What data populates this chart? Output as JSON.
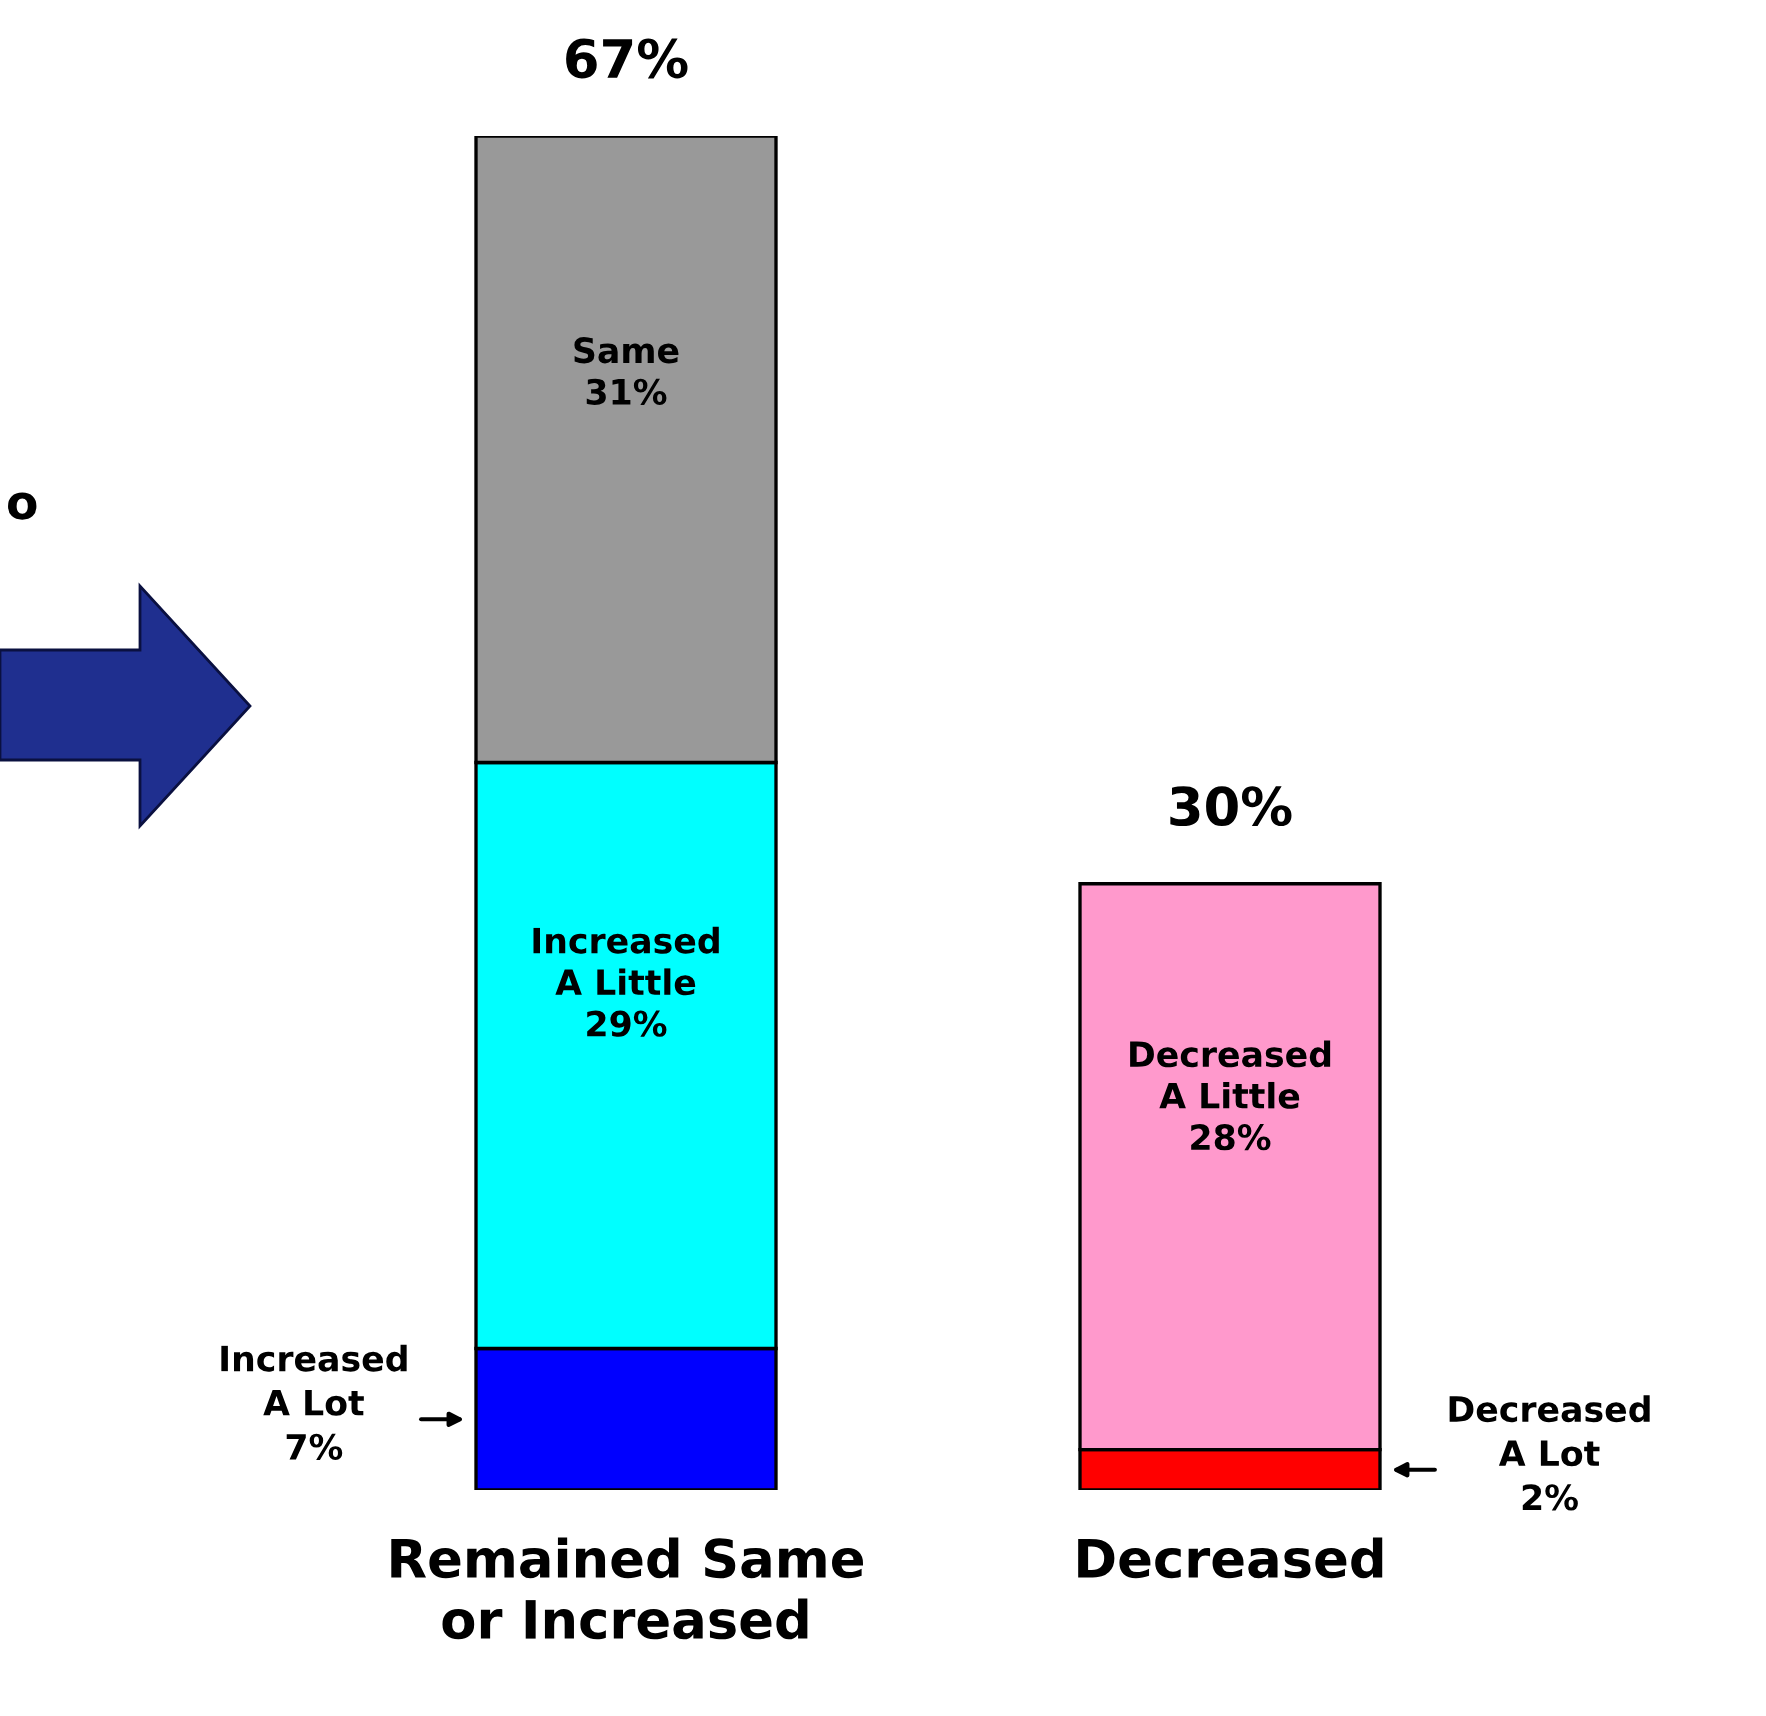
{
  "chart_data": {
    "type": "bar",
    "stacked": true,
    "categories": [
      "Remained Same\nor Increased",
      "Decreased"
    ],
    "series": [
      {
        "colors": [
          "#0000ff",
          "#ff0000"
        ],
        "values": [
          7,
          2
        ],
        "value_labels": [
          "Increased\nA Lot\n7%",
          "Decreased\nA Lot\n2%"
        ]
      },
      {
        "colors": [
          "#00ffff",
          "#ff99cc"
        ],
        "values": [
          29,
          28
        ],
        "value_labels": [
          "Increased\nA Little\n29%",
          "Decreased\nA Little\n28%"
        ]
      },
      {
        "colors": [
          "#999999",
          null
        ],
        "values": [
          31,
          null
        ],
        "value_labels": [
          "Same\n31%",
          null
        ]
      }
    ],
    "totals": [
      "67%",
      "30%"
    ],
    "annotations": [
      "o"
    ],
    "legend": false
  }
}
